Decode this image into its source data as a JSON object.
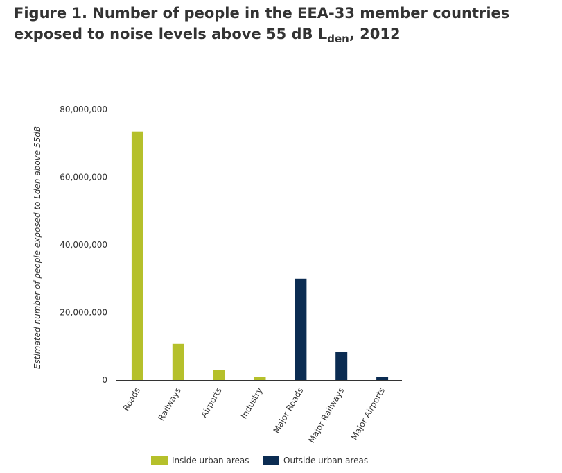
{
  "title": {
    "main": "Figure 1. Number of people in the EEA-33 member countries exposed to noise levels above 55 dB L",
    "subscript": "den",
    "suffix": ", 2012"
  },
  "chart_data": {
    "type": "bar",
    "categories": [
      "Roads",
      "Railways",
      "Airports",
      "Industry",
      "Major Roads",
      "Major Railways",
      "Major Airports"
    ],
    "series": [
      {
        "name": "Inside urban areas",
        "color": "#b5c02b",
        "values": [
          73500000,
          10700000,
          2900000,
          900000,
          null,
          null,
          null
        ]
      },
      {
        "name": "Outside urban areas",
        "color": "#0b2c52",
        "values": [
          null,
          null,
          null,
          null,
          30000000,
          8400000,
          900000
        ]
      }
    ],
    "xlabel": "",
    "ylabel": "Estimated number of people exposed to Lden above 55dB",
    "ylim": [
      0,
      80000000
    ],
    "yticks": [
      0,
      20000000,
      40000000,
      60000000,
      80000000
    ],
    "ytick_labels": [
      "0",
      "20,000,000",
      "40,000,000",
      "60,000,000",
      "80,000,000"
    ],
    "grid": false,
    "legend_position": "bottom-center"
  }
}
